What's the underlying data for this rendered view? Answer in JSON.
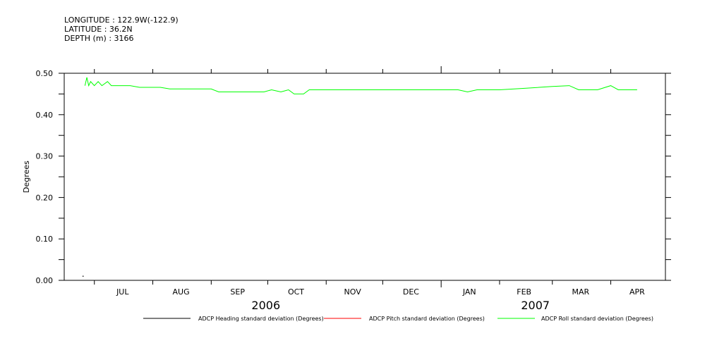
{
  "header": {
    "longitude": "LONGITUDE : 122.9W(-122.9)",
    "latitude": "LATITUDE : 36.2N",
    "depth": "DEPTH (m) : 3166"
  },
  "chart_data": {
    "type": "line",
    "title": "",
    "xlabel": "",
    "ylabel": "Degrees",
    "ylim": [
      0,
      0.5
    ],
    "y_ticks": [
      "0.00",
      "0.10",
      "0.20",
      "0.30",
      "0.40",
      "0.50"
    ],
    "x_range": [
      "2006-06-15",
      "2007-04-30"
    ],
    "x_month_labels": [
      "JUL",
      "AUG",
      "SEP",
      "OCT",
      "NOV",
      "DEC",
      "JAN",
      "FEB",
      "MAR",
      "APR"
    ],
    "years": [
      "2006",
      "2007"
    ],
    "grid": false,
    "legend_position": "bottom",
    "series": [
      {
        "name": "ADCP Heading standard deviation (Degrees)",
        "color": "#000000",
        "points": [
          [
            "2006-06-25",
            0.01
          ]
        ]
      },
      {
        "name": "ADCP Pitch standard deviation (Degrees)",
        "color": "#ff0000",
        "points": []
      },
      {
        "name": "ADCP Roll standard deviation (Degrees)",
        "color": "#00ff00",
        "points": [
          [
            "2006-06-26",
            0.47
          ],
          [
            "2006-06-27",
            0.49
          ],
          [
            "2006-06-28",
            0.47
          ],
          [
            "2006-06-29",
            0.48
          ],
          [
            "2006-07-01",
            0.47
          ],
          [
            "2006-07-03",
            0.48
          ],
          [
            "2006-07-05",
            0.47
          ],
          [
            "2006-07-08",
            0.48
          ],
          [
            "2006-07-10",
            0.47
          ],
          [
            "2006-07-15",
            0.47
          ],
          [
            "2006-07-20",
            0.47
          ],
          [
            "2006-07-25",
            0.466
          ],
          [
            "2006-07-31",
            0.466
          ],
          [
            "2006-08-05",
            0.466
          ],
          [
            "2006-08-10",
            0.462
          ],
          [
            "2006-08-15",
            0.462
          ],
          [
            "2006-08-20",
            0.462
          ],
          [
            "2006-08-25",
            0.462
          ],
          [
            "2006-09-01",
            0.462
          ],
          [
            "2006-09-05",
            0.455
          ],
          [
            "2006-09-10",
            0.455
          ],
          [
            "2006-09-15",
            0.455
          ],
          [
            "2006-09-20",
            0.455
          ],
          [
            "2006-09-25",
            0.455
          ],
          [
            "2006-09-29",
            0.455
          ],
          [
            "2006-10-03",
            0.46
          ],
          [
            "2006-10-08",
            0.455
          ],
          [
            "2006-10-12",
            0.46
          ],
          [
            "2006-10-15",
            0.45
          ],
          [
            "2006-10-20",
            0.45
          ],
          [
            "2006-10-23",
            0.46
          ],
          [
            "2006-11-01",
            0.46
          ],
          [
            "2006-11-10",
            0.46
          ],
          [
            "2006-11-20",
            0.46
          ],
          [
            "2006-12-01",
            0.46
          ],
          [
            "2006-12-10",
            0.46
          ],
          [
            "2006-12-20",
            0.46
          ],
          [
            "2007-01-01",
            0.46
          ],
          [
            "2007-01-10",
            0.46
          ],
          [
            "2007-01-15",
            0.455
          ],
          [
            "2007-01-20",
            0.46
          ],
          [
            "2007-02-01",
            0.46
          ],
          [
            "2007-02-15",
            0.464
          ],
          [
            "2007-03-01",
            0.468
          ],
          [
            "2007-03-10",
            0.47
          ],
          [
            "2007-03-15",
            0.46
          ],
          [
            "2007-03-25",
            0.46
          ],
          [
            "2007-04-01",
            0.47
          ],
          [
            "2007-04-05",
            0.46
          ],
          [
            "2007-04-15",
            0.46
          ]
        ]
      }
    ]
  }
}
